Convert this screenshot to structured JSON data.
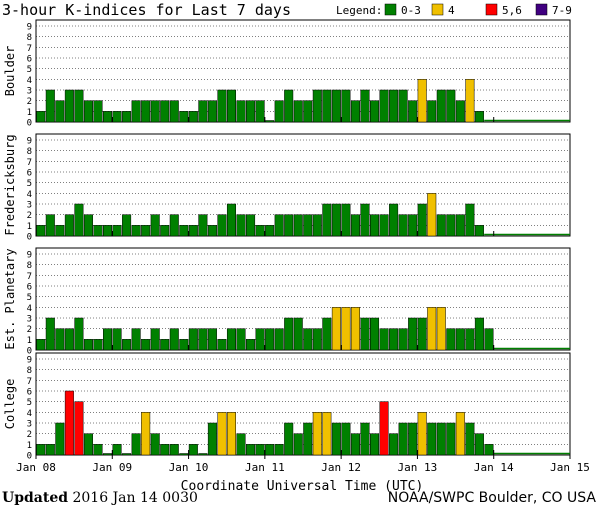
{
  "colors": {
    "kp_0_3": "#008000",
    "kp_4": "#f0c000",
    "kp_5_6": "#ff0000",
    "kp_7_9": "#400080",
    "frame": "#000000",
    "grid": "#000000"
  },
  "footer": {
    "updated_label": "Updated",
    "updated_value": "2016 Jan 14 0030",
    "credit": "NOAA/SWPC Boulder, CO USA"
  },
  "chart_data": {
    "type": "bar",
    "title": "3-hour K-indices for Last 7 days",
    "legend": {
      "label": "Legend:",
      "position": "top-right",
      "entries": [
        {
          "label": "0-3",
          "color": "#008000"
        },
        {
          "label": "4",
          "color": "#f0c000"
        },
        {
          "label": "5,6",
          "color": "#ff0000"
        },
        {
          "label": "7-9",
          "color": "#400080"
        }
      ]
    },
    "xlabel": "Coordinate Universal Time (UTC)",
    "x_ticks": [
      "Jan 08",
      "Jan 09",
      "Jan 10",
      "Jan 11",
      "Jan 12",
      "Jan 13",
      "Jan 14",
      "Jan 15"
    ],
    "y_ticks": [
      "0",
      "1",
      "2",
      "3",
      "4",
      "5",
      "6",
      "7",
      "8",
      "9"
    ],
    "ylim": [
      0,
      9
    ],
    "bars_per_day": 8,
    "series": [
      {
        "name": "Boulder",
        "values": [
          1,
          3,
          2,
          3,
          3,
          2,
          2,
          1,
          1,
          1,
          2,
          2,
          2,
          2,
          2,
          1,
          1,
          2,
          2,
          3,
          3,
          2,
          2,
          2,
          0,
          2,
          3,
          2,
          2,
          3,
          3,
          3,
          3,
          2,
          3,
          2,
          3,
          3,
          3,
          2,
          4,
          2,
          3,
          3,
          2,
          4,
          1
        ]
      },
      {
        "name": "Fredericksburg",
        "values": [
          1,
          2,
          1,
          2,
          3,
          2,
          1,
          1,
          1,
          2,
          1,
          1,
          2,
          1,
          2,
          1,
          1,
          2,
          1,
          2,
          3,
          2,
          2,
          1,
          1,
          2,
          2,
          2,
          2,
          2,
          3,
          3,
          3,
          2,
          3,
          2,
          2,
          3,
          2,
          2,
          3,
          4,
          2,
          2,
          2,
          3,
          1
        ]
      },
      {
        "name": "Est. Planetary",
        "values": [
          1,
          3,
          2,
          2,
          3,
          1,
          1,
          2,
          2,
          1,
          2,
          1,
          2,
          1,
          2,
          1,
          2,
          2,
          2,
          1,
          2,
          2,
          1,
          2,
          2,
          2,
          3,
          3,
          2,
          2,
          3,
          4,
          4,
          4,
          3,
          3,
          2,
          2,
          2,
          3,
          3,
          4,
          4,
          2,
          2,
          2,
          3,
          2
        ]
      },
      {
        "name": "College",
        "values": [
          1,
          1,
          3,
          6,
          5,
          2,
          1,
          0,
          1,
          0,
          2,
          4,
          2,
          1,
          1,
          0,
          1,
          0,
          3,
          4,
          4,
          2,
          1,
          1,
          1,
          1,
          3,
          2,
          3,
          4,
          4,
          3,
          3,
          2,
          3,
          2,
          5,
          2,
          3,
          3,
          4,
          3,
          3,
          3,
          4,
          3,
          2,
          1
        ]
      }
    ]
  }
}
